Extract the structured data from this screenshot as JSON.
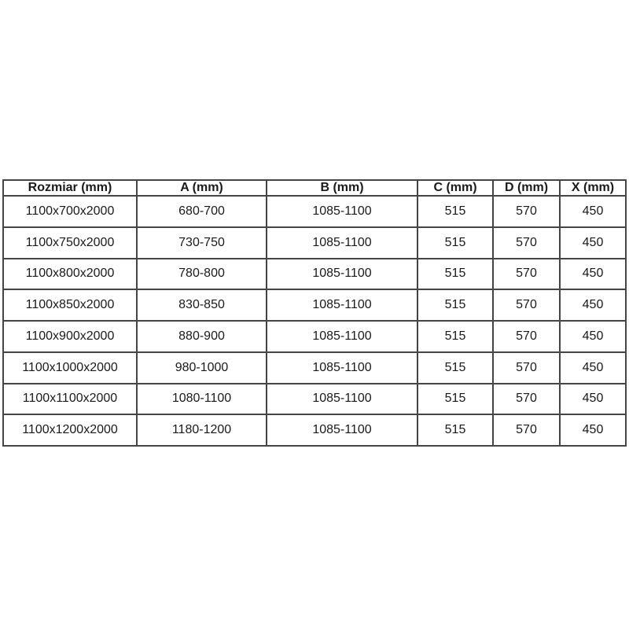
{
  "page": {
    "background": "#ffffff"
  },
  "table": {
    "border_color": "#454545",
    "text_color": "#1a1a1a",
    "columns": [
      "Rozmiar (mm)",
      "A (mm)",
      "B (mm)",
      "C (mm)",
      "D (mm)",
      "X (mm)"
    ],
    "rows": [
      [
        "1100x700x2000",
        "680-700",
        "1085-1100",
        "515",
        "570",
        "450"
      ],
      [
        "1100x750x2000",
        "730-750",
        "1085-1100",
        "515",
        "570",
        "450"
      ],
      [
        "1100x800x2000",
        "780-800",
        "1085-1100",
        "515",
        "570",
        "450"
      ],
      [
        "1100x850x2000",
        "830-850",
        "1085-1100",
        "515",
        "570",
        "450"
      ],
      [
        "1100x900x2000",
        "880-900",
        "1085-1100",
        "515",
        "570",
        "450"
      ],
      [
        "1100x1000x2000",
        "980-1000",
        "1085-1100",
        "515",
        "570",
        "450"
      ],
      [
        "1100x1100x2000",
        "1080-1100",
        "1085-1100",
        "515",
        "570",
        "450"
      ],
      [
        "1100x1200x2000",
        "1180-1200",
        "1085-1100",
        "515",
        "570",
        "450"
      ]
    ]
  }
}
